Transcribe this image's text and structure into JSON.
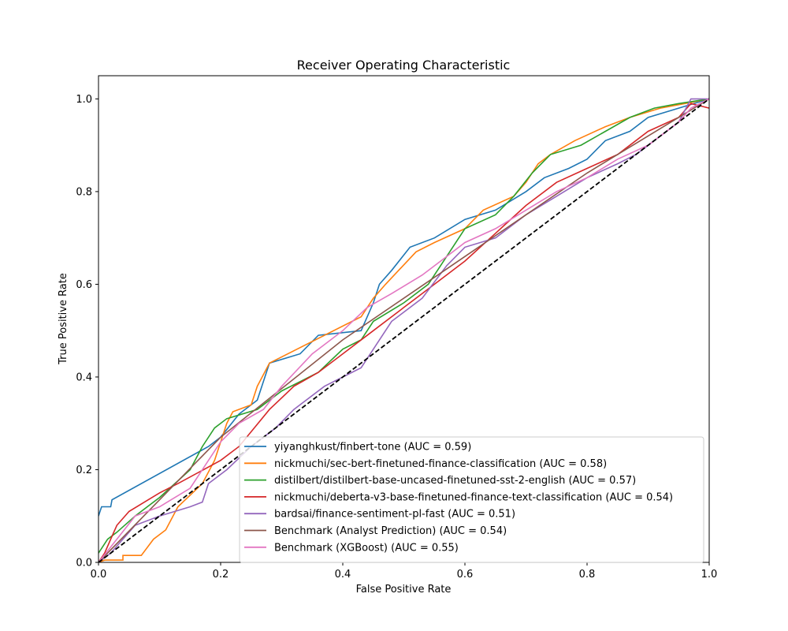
{
  "chart_data": {
    "type": "line",
    "title": "Receiver Operating Characteristic",
    "xlabel": "False Positive Rate",
    "ylabel": "True Positive Rate",
    "xlim": [
      0.0,
      1.0
    ],
    "ylim": [
      0.0,
      1.05
    ],
    "xticks": [
      "0.0",
      "0.2",
      "0.4",
      "0.6",
      "0.8",
      "1.0"
    ],
    "yticks": [
      "0.0",
      "0.2",
      "0.4",
      "0.6",
      "0.8",
      "1.0"
    ],
    "grid": false,
    "legend_position": "lower-right",
    "series": [
      {
        "name": "yiyanghkust/finbert-tone (AUC = 0.59)",
        "color": "#1f77b4",
        "points": [
          [
            0,
            0.1
          ],
          [
            0.005,
            0.12
          ],
          [
            0.02,
            0.12
          ],
          [
            0.022,
            0.135
          ],
          [
            0.18,
            0.25
          ],
          [
            0.2,
            0.27
          ],
          [
            0.23,
            0.32
          ],
          [
            0.26,
            0.35
          ],
          [
            0.28,
            0.43
          ],
          [
            0.33,
            0.45
          ],
          [
            0.36,
            0.49
          ],
          [
            0.43,
            0.5
          ],
          [
            0.45,
            0.56
          ],
          [
            0.46,
            0.6
          ],
          [
            0.48,
            0.63
          ],
          [
            0.51,
            0.68
          ],
          [
            0.55,
            0.7
          ],
          [
            0.6,
            0.74
          ],
          [
            0.65,
            0.76
          ],
          [
            0.7,
            0.8
          ],
          [
            0.73,
            0.83
          ],
          [
            0.77,
            0.85
          ],
          [
            0.8,
            0.87
          ],
          [
            0.83,
            0.91
          ],
          [
            0.87,
            0.93
          ],
          [
            0.9,
            0.96
          ],
          [
            0.95,
            0.98
          ],
          [
            1,
            1
          ]
        ]
      },
      {
        "name": "nickmuchi/sec-bert-finetuned-finance-classification (AUC = 0.58)",
        "color": "#ff7f0e",
        "points": [
          [
            0,
            0
          ],
          [
            0.01,
            0.005
          ],
          [
            0.04,
            0.005
          ],
          [
            0.04,
            0.015
          ],
          [
            0.07,
            0.015
          ],
          [
            0.09,
            0.05
          ],
          [
            0.11,
            0.07
          ],
          [
            0.13,
            0.12
          ],
          [
            0.17,
            0.17
          ],
          [
            0.19,
            0.22
          ],
          [
            0.21,
            0.3
          ],
          [
            0.22,
            0.325
          ],
          [
            0.25,
            0.34
          ],
          [
            0.26,
            0.38
          ],
          [
            0.28,
            0.43
          ],
          [
            0.43,
            0.53
          ],
          [
            0.45,
            0.57
          ],
          [
            0.47,
            0.6
          ],
          [
            0.52,
            0.67
          ],
          [
            0.55,
            0.69
          ],
          [
            0.6,
            0.72
          ],
          [
            0.63,
            0.76
          ],
          [
            0.68,
            0.79
          ],
          [
            0.7,
            0.82
          ],
          [
            0.72,
            0.86
          ],
          [
            0.74,
            0.88
          ],
          [
            0.78,
            0.91
          ],
          [
            0.83,
            0.94
          ],
          [
            0.87,
            0.96
          ],
          [
            0.92,
            0.98
          ],
          [
            0.96,
            0.99
          ],
          [
            1,
            1
          ]
        ]
      },
      {
        "name": "distilbert/distilbert-base-uncased-finetuned-sst-2-english (AUC = 0.57)",
        "color": "#2ca02c",
        "points": [
          [
            0,
            0.02
          ],
          [
            0.015,
            0.05
          ],
          [
            0.03,
            0.065
          ],
          [
            0.06,
            0.1
          ],
          [
            0.1,
            0.14
          ],
          [
            0.15,
            0.2
          ],
          [
            0.17,
            0.25
          ],
          [
            0.19,
            0.29
          ],
          [
            0.21,
            0.31
          ],
          [
            0.26,
            0.33
          ],
          [
            0.3,
            0.37
          ],
          [
            0.36,
            0.41
          ],
          [
            0.4,
            0.46
          ],
          [
            0.43,
            0.48
          ],
          [
            0.45,
            0.52
          ],
          [
            0.5,
            0.56
          ],
          [
            0.54,
            0.6
          ],
          [
            0.57,
            0.66
          ],
          [
            0.6,
            0.72
          ],
          [
            0.65,
            0.75
          ],
          [
            0.68,
            0.79
          ],
          [
            0.71,
            0.84
          ],
          [
            0.74,
            0.88
          ],
          [
            0.79,
            0.9
          ],
          [
            0.83,
            0.93
          ],
          [
            0.87,
            0.96
          ],
          [
            0.91,
            0.98
          ],
          [
            0.95,
            0.99
          ],
          [
            1,
            1
          ]
        ]
      },
      {
        "name": "nickmuchi/deberta-v3-base-finetuned-finance-text-classification (AUC = 0.54)",
        "color": "#d62728",
        "points": [
          [
            0,
            0
          ],
          [
            0.01,
            0.02
          ],
          [
            0.02,
            0.05
          ],
          [
            0.03,
            0.08
          ],
          [
            0.05,
            0.11
          ],
          [
            0.1,
            0.15
          ],
          [
            0.13,
            0.17
          ],
          [
            0.2,
            0.22
          ],
          [
            0.23,
            0.25
          ],
          [
            0.28,
            0.33
          ],
          [
            0.32,
            0.38
          ],
          [
            0.36,
            0.41
          ],
          [
            0.4,
            0.45
          ],
          [
            0.45,
            0.5
          ],
          [
            0.5,
            0.55
          ],
          [
            0.55,
            0.6
          ],
          [
            0.6,
            0.65
          ],
          [
            0.65,
            0.71
          ],
          [
            0.7,
            0.77
          ],
          [
            0.75,
            0.82
          ],
          [
            0.8,
            0.85
          ],
          [
            0.85,
            0.88
          ],
          [
            0.9,
            0.93
          ],
          [
            0.95,
            0.96
          ],
          [
            0.97,
            0.99
          ],
          [
            1,
            0.98
          ]
        ]
      },
      {
        "name": "bardsai/finance-sentiment-pl-fast (AUC = 0.51)",
        "color": "#9467bd",
        "points": [
          [
            0,
            0
          ],
          [
            0.02,
            0.02
          ],
          [
            0.06,
            0.08
          ],
          [
            0.1,
            0.1
          ],
          [
            0.15,
            0.12
          ],
          [
            0.17,
            0.13
          ],
          [
            0.18,
            0.17
          ],
          [
            0.21,
            0.2
          ],
          [
            0.25,
            0.25
          ],
          [
            0.29,
            0.29
          ],
          [
            0.32,
            0.33
          ],
          [
            0.37,
            0.38
          ],
          [
            0.4,
            0.4
          ],
          [
            0.43,
            0.42
          ],
          [
            0.45,
            0.46
          ],
          [
            0.48,
            0.52
          ],
          [
            0.53,
            0.57
          ],
          [
            0.57,
            0.64
          ],
          [
            0.6,
            0.68
          ],
          [
            0.65,
            0.7
          ],
          [
            0.7,
            0.75
          ],
          [
            0.75,
            0.79
          ],
          [
            0.8,
            0.83
          ],
          [
            0.85,
            0.86
          ],
          [
            0.88,
            0.88
          ],
          [
            0.91,
            0.91
          ],
          [
            0.95,
            0.95
          ],
          [
            0.97,
            1
          ],
          [
            1,
            1
          ]
        ]
      },
      {
        "name": "Benchmark (Analyst Prediction) (AUC = 0.54)",
        "color": "#8c564b",
        "points": [
          [
            0,
            0
          ],
          [
            0.2,
            0.27
          ],
          [
            0.4,
            0.48
          ],
          [
            0.6,
            0.66
          ],
          [
            0.8,
            0.84
          ],
          [
            1,
            1
          ]
        ]
      },
      {
        "name": "Benchmark (XGBoost) (AUC = 0.55)",
        "color": "#e377c2",
        "points": [
          [
            0,
            0
          ],
          [
            0.03,
            0.05
          ],
          [
            0.06,
            0.1
          ],
          [
            0.1,
            0.12
          ],
          [
            0.15,
            0.16
          ],
          [
            0.2,
            0.26
          ],
          [
            0.23,
            0.3
          ],
          [
            0.27,
            0.33
          ],
          [
            0.3,
            0.38
          ],
          [
            0.35,
            0.45
          ],
          [
            0.4,
            0.5
          ],
          [
            0.44,
            0.55
          ],
          [
            0.48,
            0.58
          ],
          [
            0.53,
            0.62
          ],
          [
            0.57,
            0.66
          ],
          [
            0.6,
            0.69
          ],
          [
            0.65,
            0.72
          ],
          [
            0.7,
            0.76
          ],
          [
            0.75,
            0.8
          ],
          [
            0.8,
            0.83
          ],
          [
            0.85,
            0.87
          ],
          [
            0.9,
            0.9
          ],
          [
            0.95,
            0.95
          ],
          [
            0.97,
            0.98
          ],
          [
            1,
            1
          ]
        ]
      }
    ],
    "reference_line": {
      "style": "dashed",
      "color": "#000000",
      "points": [
        [
          0,
          0
        ],
        [
          1,
          1
        ]
      ]
    }
  }
}
